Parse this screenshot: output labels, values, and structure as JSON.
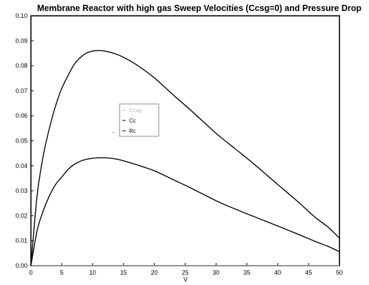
{
  "chart_data": {
    "type": "line",
    "title": "Membrane Reactor with high gas Sweep Velocities (Ccsg=0) and Pressure Drop",
    "xlabel": "V",
    "ylabel": "",
    "xlim": [
      0,
      50
    ],
    "ylim": [
      0,
      0.1
    ],
    "x_ticks": [
      "0",
      "5",
      "10",
      "15",
      "20",
      "25",
      "30",
      "35",
      "40",
      "45",
      "50"
    ],
    "y_ticks": [
      "0.00",
      "0.01",
      "0.02",
      "0.03",
      "0.04",
      "0.05",
      "0.06",
      "0.07",
      "0.08",
      "0.09",
      "0.10"
    ],
    "grid": false,
    "legend_position": "center-left",
    "series": [
      {
        "name": "Ccsg",
        "color": "#bbbbbb",
        "x": [
          0,
          50
        ],
        "y": [
          0,
          0
        ]
      },
      {
        "name": "Cc",
        "color": "#000000",
        "x": [
          0,
          1,
          2,
          3,
          4,
          5,
          6,
          7,
          8,
          9,
          10,
          11,
          12,
          13,
          14,
          15,
          17,
          20,
          23,
          26,
          30,
          33,
          36,
          40,
          43,
          46,
          48,
          49,
          50
        ],
        "y": [
          0,
          0.028,
          0.044,
          0.055,
          0.064,
          0.071,
          0.076,
          0.0805,
          0.0833,
          0.0851,
          0.0859,
          0.0861,
          0.0859,
          0.0853,
          0.0845,
          0.0834,
          0.0806,
          0.0752,
          0.0685,
          0.062,
          0.053,
          0.047,
          0.041,
          0.0325,
          0.0262,
          0.0195,
          0.0158,
          0.0135,
          0.011
        ]
      },
      {
        "name": "Rc",
        "color": "#000000",
        "x": [
          0,
          1,
          2,
          3,
          4,
          5,
          6,
          7,
          8,
          9,
          10,
          11,
          12,
          13,
          14,
          15,
          17,
          20,
          23,
          26,
          30,
          33,
          36,
          40,
          43,
          46,
          48,
          49,
          50
        ],
        "y": [
          0,
          0.014,
          0.022,
          0.028,
          0.0325,
          0.0355,
          0.0385,
          0.0405,
          0.0418,
          0.0426,
          0.043,
          0.0432,
          0.0432,
          0.043,
          0.0426,
          0.042,
          0.0405,
          0.038,
          0.0345,
          0.031,
          0.026,
          0.0228,
          0.0198,
          0.0159,
          0.0129,
          0.0098,
          0.0079,
          0.0068,
          0.0056
        ]
      }
    ]
  }
}
